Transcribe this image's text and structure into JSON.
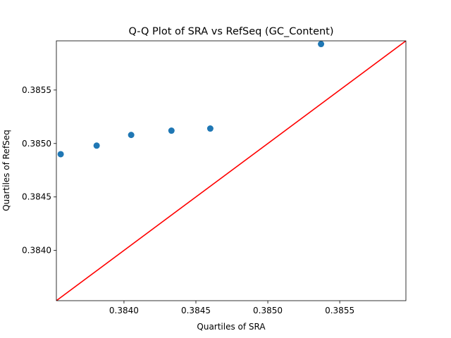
{
  "chart_data": {
    "type": "scatter",
    "title": "Q-Q Plot of SRA vs RefSeq (GC_Content)",
    "xlabel": "Quartiles of SRA",
    "ylabel": "Quartiles of RefSeq",
    "xlim": [
      0.38353,
      0.38596
    ],
    "ylim": [
      0.38353,
      0.38596
    ],
    "x_ticks": [
      0.384,
      0.3845,
      0.385,
      0.3855
    ],
    "x_tick_labels": [
      "0.3840",
      "0.3845",
      "0.3850",
      "0.3855"
    ],
    "y_ticks": [
      0.384,
      0.3845,
      0.385,
      0.3855
    ],
    "y_tick_labels": [
      "0.3840",
      "0.3845",
      "0.3850",
      "0.3855"
    ],
    "grid": false,
    "series": [
      {
        "type": "scatter",
        "color": "#1f77b4",
        "points": [
          {
            "x": 0.38356,
            "y": 0.3849
          },
          {
            "x": 0.38381,
            "y": 0.38498
          },
          {
            "x": 0.38405,
            "y": 0.38508
          },
          {
            "x": 0.38433,
            "y": 0.38512
          },
          {
            "x": 0.3846,
            "y": 0.38514
          },
          {
            "x": 0.38537,
            "y": 0.38593
          }
        ]
      },
      {
        "type": "line",
        "color": "#ff0000",
        "points": [
          {
            "x": 0.38353,
            "y": 0.38353
          },
          {
            "x": 0.38596,
            "y": 0.38596
          }
        ]
      }
    ]
  }
}
